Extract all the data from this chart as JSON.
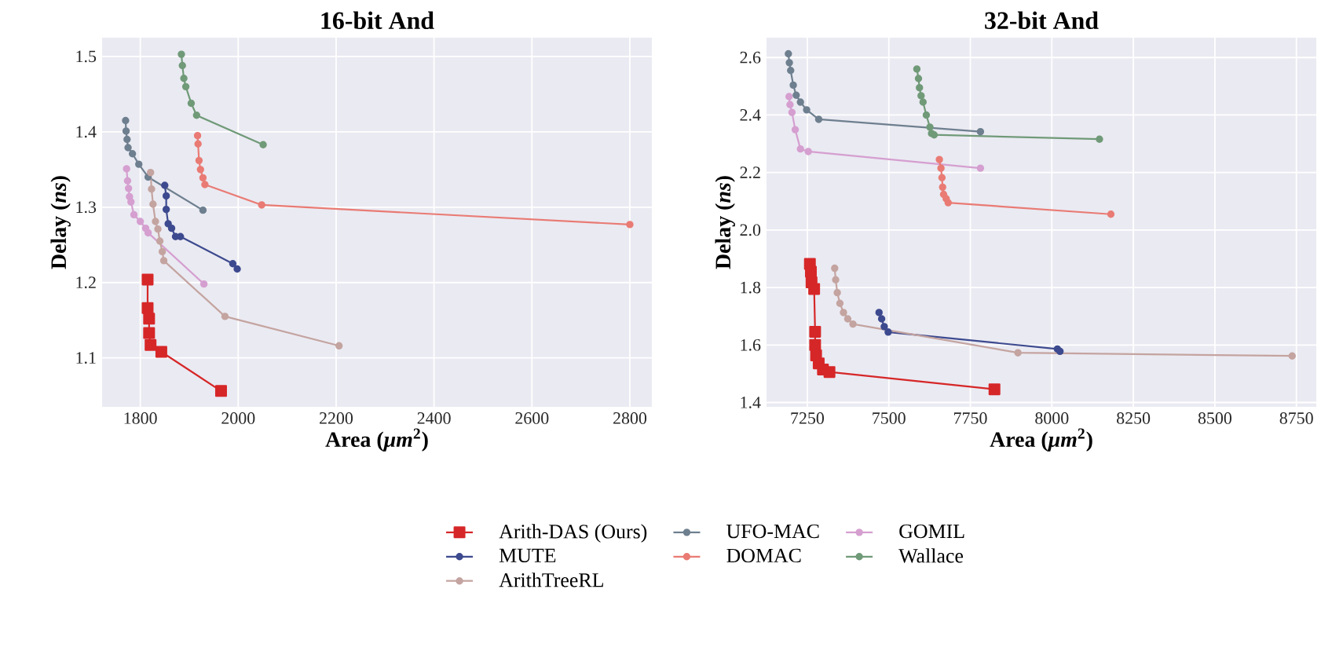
{
  "chart_data": [
    {
      "type": "line",
      "title": "16-bit And",
      "xlabel": "**Area (*μm*$^{2}$)**",
      "ylabel": "**Delay (*ns*)**",
      "xlim": [
        1722,
        2845
      ],
      "ylim": [
        1.035,
        1.525
      ],
      "xticks": [
        1800,
        2000,
        2200,
        2400,
        2600,
        2800
      ],
      "yticks": [
        1.1,
        1.2,
        1.3,
        1.4,
        1.5
      ],
      "grid": true,
      "legend": "bottom",
      "line_style": "solid",
      "series": [
        {
          "name": "Arith-DAS (Ours)",
          "color": "#d62728",
          "marker": "square",
          "x": [
            1815,
            1815,
            1818,
            1818,
            1821,
            1843,
            1965
          ],
          "values": [
            1.204,
            1.166,
            1.152,
            1.133,
            1.117,
            1.108,
            1.056
          ]
        },
        {
          "name": "UFO-MAC",
          "color": "#6e7f8f",
          "marker": "circle",
          "x": [
            1770,
            1771,
            1773,
            1775,
            1784,
            1797,
            1816,
            1928
          ],
          "values": [
            1.415,
            1.401,
            1.39,
            1.379,
            1.371,
            1.357,
            1.34,
            1.296
          ]
        },
        {
          "name": "GOMIL",
          "color": "#d59fd0",
          "marker": "circle",
          "x": [
            1772,
            1774,
            1776,
            1778,
            1781,
            1787,
            1800,
            1811,
            1816,
            1930
          ],
          "values": [
            1.351,
            1.335,
            1.325,
            1.314,
            1.307,
            1.29,
            1.281,
            1.272,
            1.266,
            1.198
          ]
        },
        {
          "name": "MUTE",
          "color": "#3d4a8f",
          "marker": "circle",
          "x": [
            1850,
            1853,
            1853,
            1857,
            1864,
            1872,
            1882,
            1989,
            1998
          ],
          "values": [
            1.329,
            1.315,
            1.297,
            1.278,
            1.272,
            1.261,
            1.261,
            1.225,
            1.218
          ]
        },
        {
          "name": "DOMAC",
          "color": "#e97b74",
          "marker": "circle",
          "x": [
            1917,
            1918,
            1920,
            1923,
            1928,
            1932,
            2048,
            2800
          ],
          "values": [
            1.395,
            1.384,
            1.362,
            1.35,
            1.339,
            1.33,
            1.303,
            1.277
          ]
        },
        {
          "name": "Wallace",
          "color": "#709a78",
          "marker": "circle",
          "x": [
            1884,
            1886,
            1889,
            1893,
            1904,
            1915,
            2051
          ],
          "values": [
            1.503,
            1.488,
            1.471,
            1.46,
            1.438,
            1.422,
            1.383
          ]
        },
        {
          "name": "ArithTreeRL",
          "color": "#c4a4a0",
          "marker": "circle",
          "x": [
            1821,
            1823,
            1826,
            1831,
            1836,
            1840,
            1845,
            1848,
            1973,
            2206
          ],
          "values": [
            1.346,
            1.324,
            1.304,
            1.281,
            1.271,
            1.255,
            1.241,
            1.229,
            1.155,
            1.116
          ]
        }
      ]
    },
    {
      "type": "line",
      "title": "32-bit And",
      "xlabel": "**Area (*μm*$^{2}$)**",
      "ylabel": "**Delay (*ns*)**",
      "xlim": [
        7125,
        8811
      ],
      "ylim": [
        1.385,
        2.669
      ],
      "xticks": [
        7250,
        7500,
        7750,
        8000,
        8250,
        8500,
        8750
      ],
      "yticks": [
        1.4,
        1.6,
        1.8,
        {
          "value": 2.0,
          "label": "2.0"
        },
        2.2,
        2.4,
        2.6
      ],
      "grid": true,
      "line_style": "solid",
      "series": [
        {
          "color": "#d62728",
          "marker": "square",
          "x": [
            7258,
            7261,
            7263,
            7271,
            7274,
            7274,
            7277,
            7285,
            7298,
            7318,
            7824
          ],
          "values": [
            1.882,
            1.855,
            1.818,
            1.795,
            1.646,
            1.6,
            1.564,
            1.536,
            1.515,
            1.506,
            1.446
          ]
        },
        {
          "color": "#6e7f8f",
          "marker": "circle",
          "x": [
            7192,
            7195,
            7199,
            7207,
            7216,
            7229,
            7248,
            7285,
            7781
          ],
          "values": [
            2.613,
            2.582,
            2.555,
            2.504,
            2.469,
            2.445,
            2.418,
            2.385,
            2.342
          ]
        },
        {
          "color": "#d59fd0",
          "marker": "circle",
          "x": [
            7194,
            7197,
            7203,
            7213,
            7229,
            7253,
            7781
          ],
          "values": [
            2.464,
            2.436,
            2.409,
            2.349,
            2.282,
            2.273,
            2.215
          ]
        },
        {
          "color": "#3d4a8f",
          "marker": "circle",
          "x": [
            7470,
            7478,
            7486,
            7498,
            8017,
            8025
          ],
          "values": [
            1.713,
            1.691,
            1.664,
            1.645,
            1.586,
            1.578
          ]
        },
        {
          "color": "#e97b74",
          "marker": "circle",
          "x": [
            7655,
            7660,
            7663,
            7665,
            7668,
            7676,
            7682,
            8181
          ],
          "values": [
            2.245,
            2.215,
            2.182,
            2.149,
            2.124,
            2.109,
            2.095,
            2.055
          ]
        },
        {
          "color": "#709a78",
          "marker": "circle",
          "x": [
            7586,
            7591,
            7594,
            7599,
            7605,
            7615,
            7626,
            7631,
            7639,
            8146
          ],
          "values": [
            2.56,
            2.527,
            2.495,
            2.467,
            2.445,
            2.4,
            2.358,
            2.336,
            2.331,
            2.316
          ]
        },
        {
          "color": "#c4a4a0",
          "marker": "circle",
          "x": [
            7334,
            7337,
            7342,
            7350,
            7361,
            7374,
            7390,
            7896,
            8737
          ],
          "values": [
            1.867,
            1.827,
            1.782,
            1.745,
            1.713,
            1.691,
            1.673,
            1.573,
            1.562
          ]
        }
      ]
    }
  ]
}
